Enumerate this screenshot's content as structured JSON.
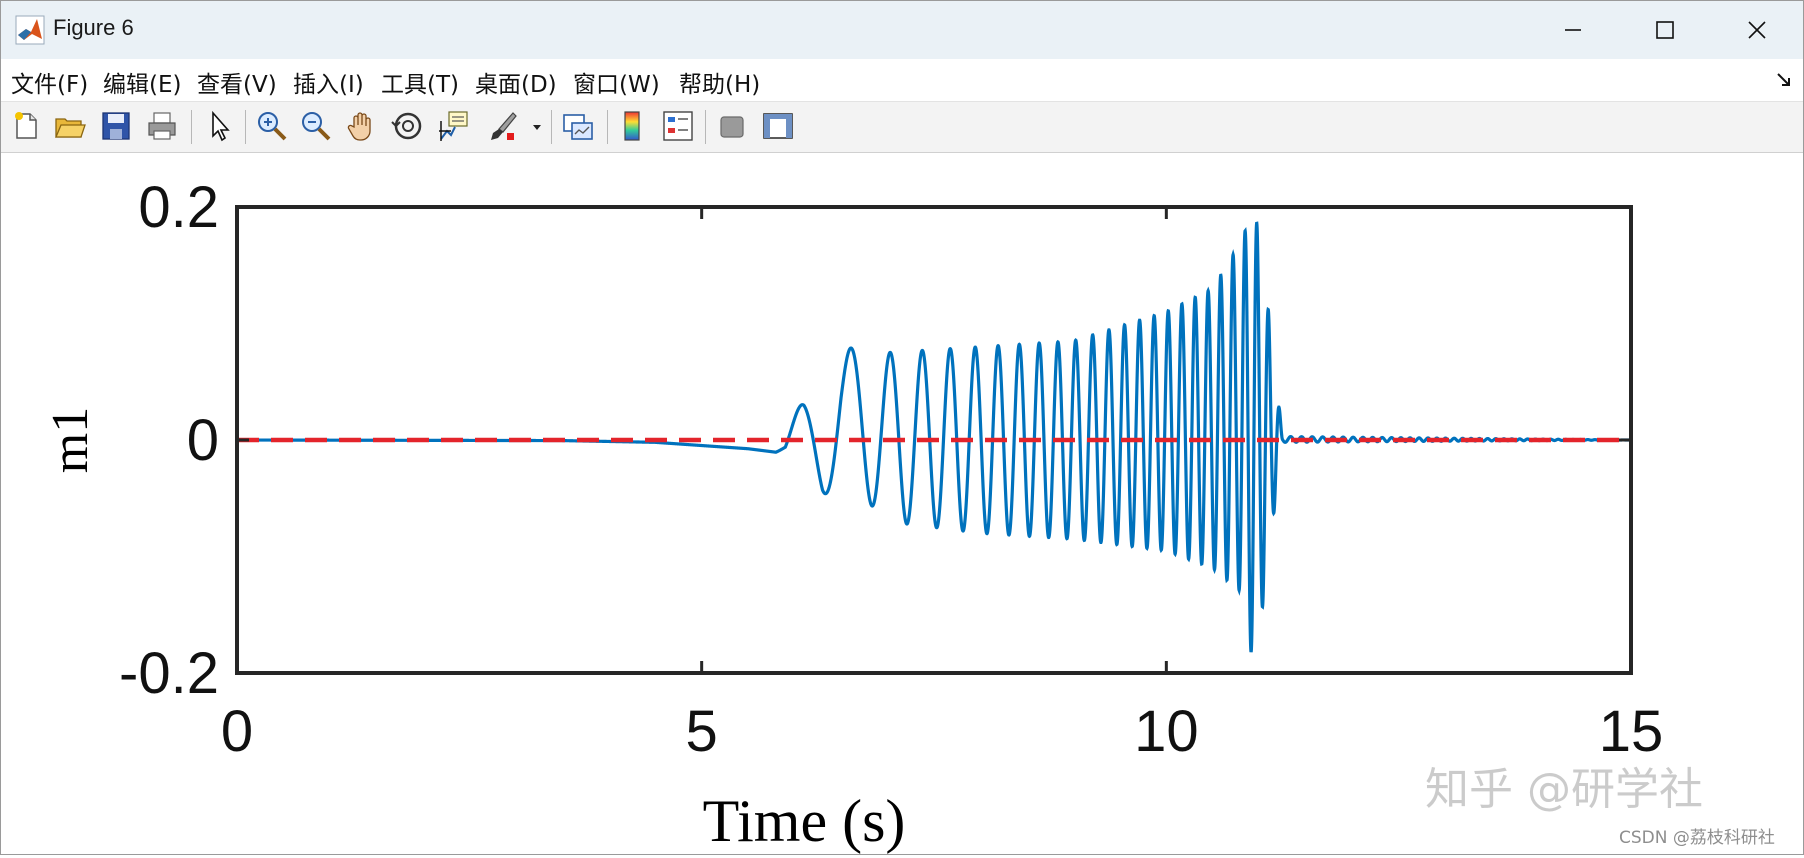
{
  "window": {
    "title": "Figure 6"
  },
  "menu": [
    "文件(F)",
    "编辑(E)",
    "查看(V)",
    "插入(I)",
    "工具(T)",
    "桌面(D)",
    "窗口(W)",
    "帮助(H)"
  ],
  "toolbar": {
    "icons": [
      "new-figure-icon",
      "open-file-icon",
      "save-icon",
      "print-icon",
      "pointer-icon",
      "zoom-in-icon",
      "zoom-out-icon",
      "pan-hand-icon",
      "rotate-3d-icon",
      "data-cursor-icon",
      "brush-icon",
      "link-plot-icon",
      "colorbar-icon",
      "legend-icon",
      "hide-plot-tools-icon",
      "show-plot-tools-icon"
    ]
  },
  "colors": {
    "signal": "#0072BD",
    "reference": "#E3242B",
    "axes": "#262626"
  },
  "chart_data": {
    "type": "line",
    "title": "",
    "xlabel": "Time (s)",
    "ylabel": "m1",
    "xlim": [
      0,
      15
    ],
    "ylim": [
      -0.2,
      0.2
    ],
    "xticks": [
      "0",
      "5",
      "10",
      "15"
    ],
    "yticks": [
      "0.2",
      "0",
      "-0.2"
    ],
    "grid": false,
    "series": [
      {
        "style": "solid",
        "color": "#0072BD",
        "envelope": {
          "t": [
            0,
            3.5,
            4.5,
            5.5,
            5.9,
            6.1,
            6.3,
            6.5,
            7.0,
            8.0,
            9.0,
            10.0,
            10.5,
            10.8,
            10.95,
            11.1,
            11.25,
            15
          ],
          "upper": [
            0.0,
            0.0,
            -0.001,
            -0.005,
            -0.003,
            0.04,
            0.07,
            0.08,
            0.075,
            0.08,
            0.085,
            0.11,
            0.13,
            0.17,
            0.2,
            0.11,
            0.003,
            0.0
          ],
          "lower": [
            0.0,
            -0.001,
            -0.003,
            -0.01,
            -0.02,
            -0.045,
            -0.05,
            -0.03,
            -0.07,
            -0.08,
            -0.085,
            -0.095,
            -0.11,
            -0.13,
            -0.2,
            -0.1,
            -0.002,
            0.0
          ]
        }
      },
      {
        "style": "dashed",
        "color": "#E3242B",
        "x": [
          0,
          15
        ],
        "y": [
          0,
          0
        ]
      }
    ]
  },
  "watermark": {
    "zhihu": "知乎 @研学社",
    "csdn": "CSDN @荔枝科研社"
  }
}
